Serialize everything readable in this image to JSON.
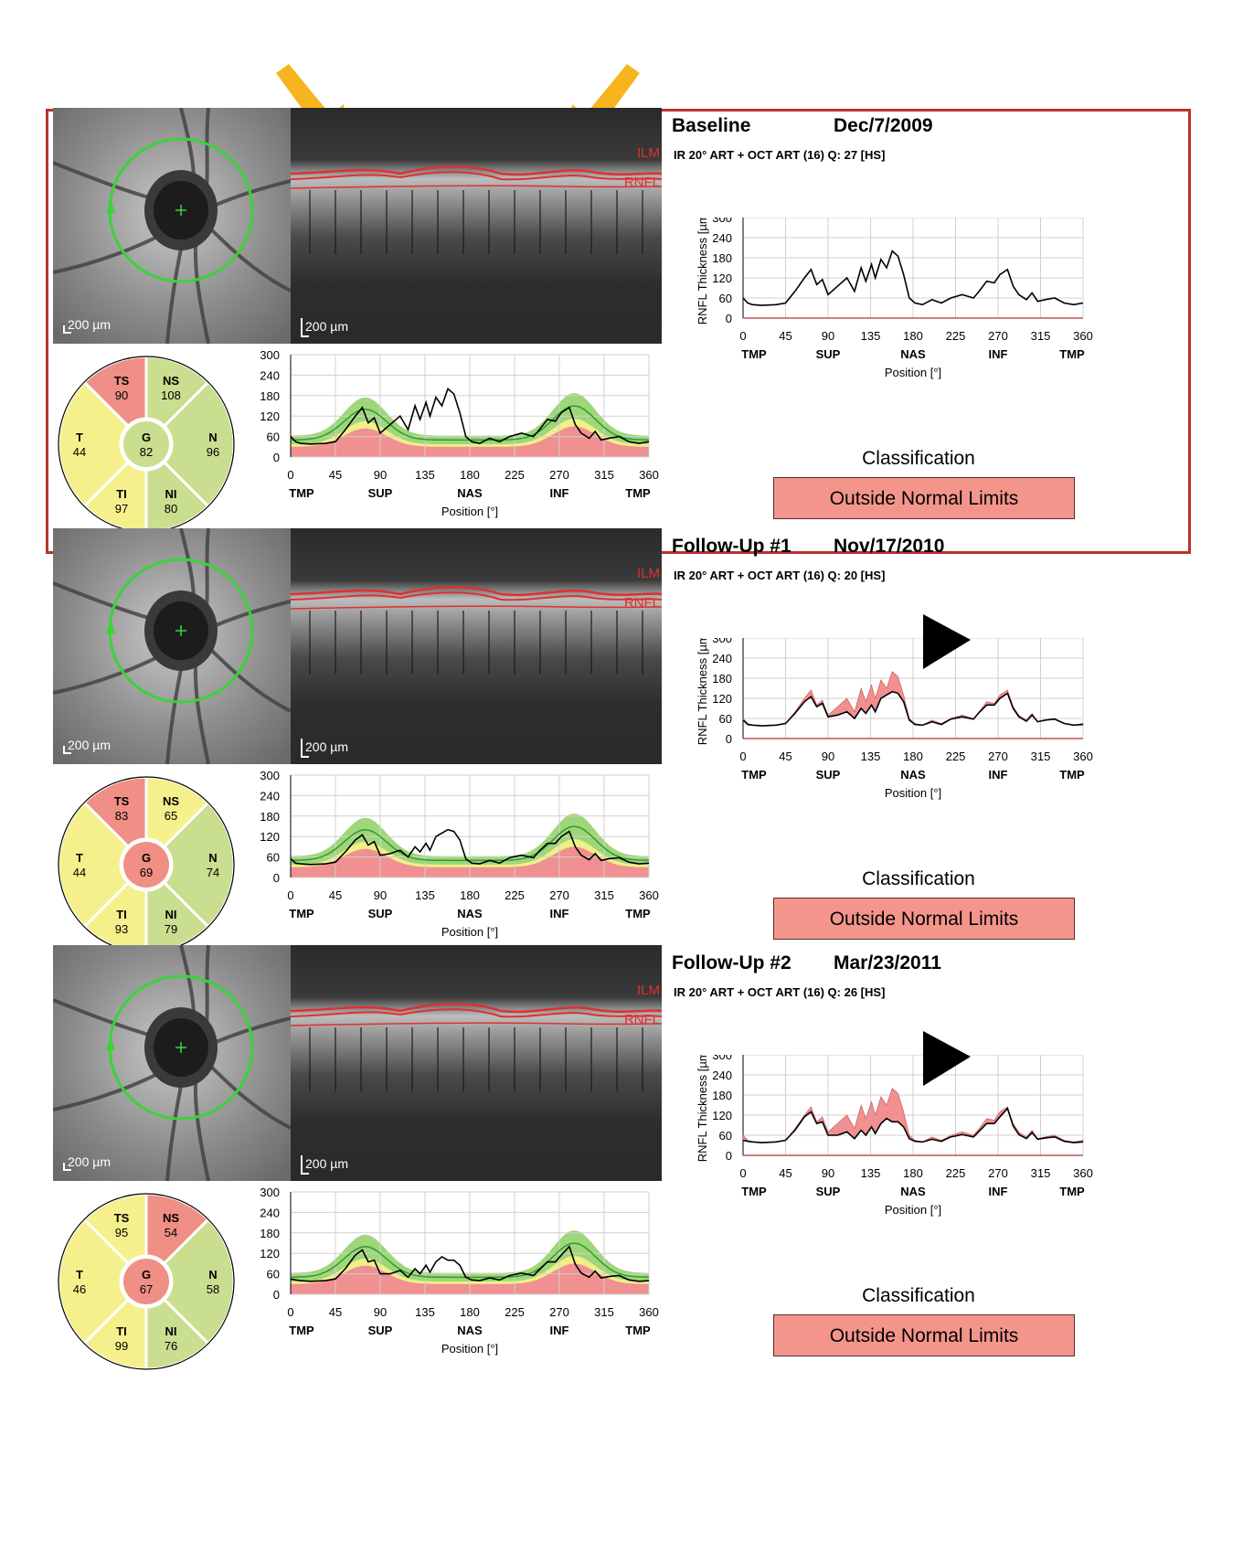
{
  "exams": [
    {
      "title": "Baseline",
      "date": "Dec/7/2009",
      "scan": "IR 20° ART + OCT ART (16) Q: 27 [HS]",
      "scale_label": "200 µm",
      "bscan_labels": {
        "ilm": "ILM",
        "rnfl": "RNFL"
      },
      "sectors": {
        "TS": {
          "label": "TS",
          "value": "90",
          "status": "red"
        },
        "NS": {
          "label": "NS",
          "value": "108",
          "status": "green"
        },
        "T": {
          "label": "T",
          "value": "44",
          "status": "yellow"
        },
        "G": {
          "label": "G",
          "value": "82",
          "status": "green"
        },
        "N": {
          "label": "N",
          "value": "96",
          "status": "green"
        },
        "TI": {
          "label": "TI",
          "value": "97",
          "status": "yellow"
        },
        "NI": {
          "label": "NI",
          "value": "80",
          "status": "green"
        }
      },
      "classification_title": "Classification",
      "classification": "Outside Normal Limits",
      "arrowhead": false,
      "thickness": [
        [
          0,
          60
        ],
        [
          5,
          45
        ],
        [
          10,
          40
        ],
        [
          20,
          38
        ],
        [
          35,
          40
        ],
        [
          45,
          45
        ],
        [
          55,
          80
        ],
        [
          65,
          120
        ],
        [
          72,
          145
        ],
        [
          78,
          100
        ],
        [
          84,
          115
        ],
        [
          90,
          70
        ],
        [
          100,
          95
        ],
        [
          110,
          120
        ],
        [
          118,
          80
        ],
        [
          125,
          150
        ],
        [
          130,
          110
        ],
        [
          136,
          160
        ],
        [
          140,
          120
        ],
        [
          146,
          175
        ],
        [
          152,
          150
        ],
        [
          158,
          200
        ],
        [
          164,
          185
        ],
        [
          170,
          130
        ],
        [
          176,
          60
        ],
        [
          182,
          45
        ],
        [
          190,
          40
        ],
        [
          200,
          55
        ],
        [
          210,
          45
        ],
        [
          220,
          60
        ],
        [
          232,
          70
        ],
        [
          244,
          60
        ],
        [
          250,
          80
        ],
        [
          258,
          110
        ],
        [
          266,
          105
        ],
        [
          272,
          130
        ],
        [
          280,
          145
        ],
        [
          286,
          95
        ],
        [
          292,
          70
        ],
        [
          300,
          55
        ],
        [
          306,
          75
        ],
        [
          312,
          50
        ],
        [
          320,
          55
        ],
        [
          330,
          60
        ],
        [
          340,
          45
        ],
        [
          350,
          40
        ],
        [
          360,
          45
        ]
      ],
      "trend_prev": null
    },
    {
      "title": "Follow-Up #1",
      "date": "Nov/17/2010",
      "scan": "IR 20° ART + OCT ART (16) Q: 20 [HS]",
      "scale_label": "200 µm",
      "bscan_labels": {
        "ilm": "ILM",
        "rnfl": "RNFL"
      },
      "sectors": {
        "TS": {
          "label": "TS",
          "value": "83",
          "status": "red"
        },
        "NS": {
          "label": "NS",
          "value": "65",
          "status": "yellow"
        },
        "T": {
          "label": "T",
          "value": "44",
          "status": "yellow"
        },
        "G": {
          "label": "G",
          "value": "69",
          "status": "red"
        },
        "N": {
          "label": "N",
          "value": "74",
          "status": "green"
        },
        "TI": {
          "label": "TI",
          "value": "93",
          "status": "yellow"
        },
        "NI": {
          "label": "NI",
          "value": "79",
          "status": "green"
        }
      },
      "classification_title": "Classification",
      "classification": "Outside Normal Limits",
      "arrowhead": true,
      "thickness": [
        [
          0,
          55
        ],
        [
          5,
          42
        ],
        [
          10,
          40
        ],
        [
          20,
          38
        ],
        [
          35,
          40
        ],
        [
          45,
          45
        ],
        [
          55,
          75
        ],
        [
          65,
          110
        ],
        [
          72,
          125
        ],
        [
          78,
          95
        ],
        [
          84,
          105
        ],
        [
          90,
          65
        ],
        [
          100,
          70
        ],
        [
          110,
          80
        ],
        [
          118,
          60
        ],
        [
          125,
          90
        ],
        [
          130,
          75
        ],
        [
          136,
          100
        ],
        [
          140,
          80
        ],
        [
          146,
          120
        ],
        [
          152,
          130
        ],
        [
          158,
          140
        ],
        [
          164,
          135
        ],
        [
          170,
          110
        ],
        [
          176,
          55
        ],
        [
          182,
          42
        ],
        [
          190,
          40
        ],
        [
          200,
          50
        ],
        [
          210,
          42
        ],
        [
          220,
          58
        ],
        [
          232,
          65
        ],
        [
          244,
          58
        ],
        [
          250,
          78
        ],
        [
          258,
          100
        ],
        [
          266,
          100
        ],
        [
          272,
          120
        ],
        [
          280,
          135
        ],
        [
          286,
          90
        ],
        [
          292,
          65
        ],
        [
          300,
          52
        ],
        [
          306,
          70
        ],
        [
          312,
          50
        ],
        [
          320,
          55
        ],
        [
          330,
          58
        ],
        [
          340,
          45
        ],
        [
          350,
          40
        ],
        [
          360,
          42
        ]
      ],
      "trend_prev": true
    },
    {
      "title": "Follow-Up #2",
      "date": "Mar/23/2011",
      "scan": "IR 20° ART + OCT ART (16) Q: 26 [HS]",
      "scale_label": "200 µm",
      "bscan_labels": {
        "ilm": "ILM",
        "rnfl": "RNFL"
      },
      "sectors": {
        "TS": {
          "label": "TS",
          "value": "95",
          "status": "yellow"
        },
        "NS": {
          "label": "NS",
          "value": "54",
          "status": "red"
        },
        "T": {
          "label": "T",
          "value": "46",
          "status": "yellow"
        },
        "G": {
          "label": "G",
          "value": "67",
          "status": "red"
        },
        "N": {
          "label": "N",
          "value": "58",
          "status": "green"
        },
        "TI": {
          "label": "TI",
          "value": "99",
          "status": "yellow"
        },
        "NI": {
          "label": "NI",
          "value": "76",
          "status": "green"
        }
      },
      "classification_title": "Classification",
      "classification": "Outside Normal Limits",
      "arrowhead": true,
      "thickness": [
        [
          0,
          45
        ],
        [
          5,
          42
        ],
        [
          10,
          40
        ],
        [
          20,
          38
        ],
        [
          35,
          40
        ],
        [
          45,
          45
        ],
        [
          55,
          75
        ],
        [
          65,
          115
        ],
        [
          72,
          130
        ],
        [
          78,
          95
        ],
        [
          84,
          100
        ],
        [
          90,
          60
        ],
        [
          100,
          60
        ],
        [
          110,
          70
        ],
        [
          118,
          50
        ],
        [
          125,
          75
        ],
        [
          130,
          60
        ],
        [
          136,
          85
        ],
        [
          140,
          65
        ],
        [
          146,
          95
        ],
        [
          152,
          110
        ],
        [
          158,
          100
        ],
        [
          164,
          100
        ],
        [
          170,
          85
        ],
        [
          176,
          50
        ],
        [
          182,
          42
        ],
        [
          190,
          40
        ],
        [
          200,
          48
        ],
        [
          210,
          42
        ],
        [
          220,
          55
        ],
        [
          232,
          62
        ],
        [
          244,
          55
        ],
        [
          250,
          72
        ],
        [
          258,
          95
        ],
        [
          266,
          95
        ],
        [
          272,
          115
        ],
        [
          280,
          140
        ],
        [
          286,
          88
        ],
        [
          292,
          62
        ],
        [
          300,
          50
        ],
        [
          306,
          68
        ],
        [
          312,
          48
        ],
        [
          320,
          52
        ],
        [
          330,
          55
        ],
        [
          340,
          42
        ],
        [
          350,
          38
        ],
        [
          360,
          40
        ]
      ],
      "trend_prev": true
    }
  ],
  "axis": {
    "y_ticks": [
      "300",
      "240",
      "180",
      "120",
      "60",
      "0"
    ],
    "x_ticks": [
      "0",
      "45",
      "90",
      "135",
      "180",
      "225",
      "270",
      "315",
      "360"
    ],
    "region_labels": [
      "TMP",
      "SUP",
      "NAS",
      "INF",
      "TMP"
    ],
    "xlabel": "Position [°]",
    "ylabel": "RNFL Thickness [µm]",
    "ylim": [
      0,
      300
    ],
    "xlim": [
      0,
      360
    ]
  },
  "colors": {
    "outside_normal": "#f3958b",
    "frame": "#b8332f",
    "green_band": "#9fd67a",
    "yellow_band": "#f0ef8a",
    "red_band": "#f09090",
    "green_line": "#2aa02a",
    "arrow_yellow": "#f6b51e",
    "sector_red": "#f08f86",
    "sector_green": "#c9de8f",
    "sector_yellow": "#f5f08c"
  }
}
